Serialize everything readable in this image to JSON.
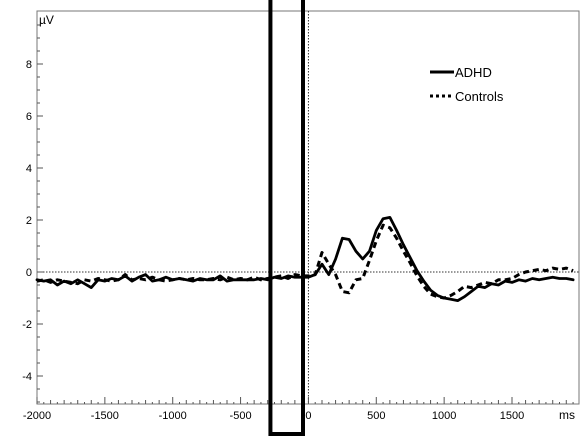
{
  "chart_data": {
    "type": "line",
    "title": "",
    "xlabel": "ms",
    "ylabel": "µV",
    "xlim": [
      -2000,
      1950
    ],
    "ylim": [
      -5,
      9.5
    ],
    "x_ticks": [
      -2000,
      -1500,
      -1000,
      -500,
      0,
      500,
      1000,
      1500
    ],
    "x_tick_labels": [
      "-2000",
      "-1500",
      "-1000",
      "-500",
      "0",
      "500",
      "1000",
      "1500"
    ],
    "y_ticks": [
      -4,
      -2,
      0,
      2,
      4,
      6,
      8
    ],
    "y_tick_labels": [
      "-4",
      "-2",
      "0",
      "2",
      "4",
      "6",
      "8"
    ],
    "grid": false,
    "legend_position": "top-right",
    "reference_lines": [
      {
        "axis": "y",
        "value": 0,
        "style": "dotted"
      },
      {
        "axis": "x",
        "value": 0,
        "style": "dotted"
      }
    ],
    "highlight_window": {
      "x_start": -280,
      "x_end": -40
    },
    "series": [
      {
        "name": "ADHD",
        "style": "solid",
        "color": "#000000",
        "x": [
          -2000,
          -1950,
          -1900,
          -1850,
          -1800,
          -1750,
          -1700,
          -1650,
          -1600,
          -1550,
          -1500,
          -1450,
          -1400,
          -1350,
          -1300,
          -1250,
          -1200,
          -1150,
          -1100,
          -1050,
          -1000,
          -950,
          -900,
          -850,
          -800,
          -750,
          -700,
          -650,
          -600,
          -550,
          -500,
          -450,
          -400,
          -350,
          -300,
          -250,
          -200,
          -150,
          -100,
          -50,
          0,
          50,
          100,
          150,
          200,
          250,
          300,
          350,
          400,
          450,
          500,
          550,
          600,
          650,
          700,
          750,
          800,
          850,
          900,
          950,
          1000,
          1050,
          1100,
          1150,
          1200,
          1250,
          1300,
          1350,
          1400,
          1450,
          1500,
          1550,
          1600,
          1650,
          1700,
          1750,
          1800,
          1850,
          1900,
          1950
        ],
        "values": [
          -0.3,
          -0.35,
          -0.3,
          -0.5,
          -0.35,
          -0.45,
          -0.3,
          -0.45,
          -0.6,
          -0.3,
          -0.35,
          -0.25,
          -0.3,
          -0.15,
          -0.35,
          -0.2,
          -0.1,
          -0.35,
          -0.3,
          -0.2,
          -0.3,
          -0.25,
          -0.3,
          -0.35,
          -0.25,
          -0.3,
          -0.3,
          -0.15,
          -0.35,
          -0.3,
          -0.3,
          -0.3,
          -0.3,
          -0.25,
          -0.3,
          -0.2,
          -0.25,
          -0.15,
          -0.2,
          -0.2,
          -0.2,
          -0.1,
          0.3,
          -0.1,
          0.5,
          1.3,
          1.25,
          0.8,
          0.5,
          0.8,
          1.6,
          2.05,
          2.1,
          1.6,
          1.05,
          0.55,
          0.05,
          -0.35,
          -0.7,
          -0.9,
          -1.0,
          -1.05,
          -1.1,
          -0.95,
          -0.75,
          -0.55,
          -0.6,
          -0.45,
          -0.5,
          -0.35,
          -0.4,
          -0.3,
          -0.35,
          -0.25,
          -0.3,
          -0.25,
          -0.2,
          -0.25,
          -0.25,
          -0.3
        ]
      },
      {
        "name": "Controls",
        "style": "dotted",
        "color": "#000000",
        "x": [
          -2000,
          -1950,
          -1900,
          -1850,
          -1800,
          -1750,
          -1700,
          -1650,
          -1600,
          -1550,
          -1500,
          -1450,
          -1400,
          -1350,
          -1300,
          -1250,
          -1200,
          -1150,
          -1100,
          -1050,
          -1000,
          -950,
          -900,
          -850,
          -800,
          -750,
          -700,
          -650,
          -600,
          -550,
          -500,
          -450,
          -400,
          -350,
          -300,
          -250,
          -200,
          -150,
          -100,
          -50,
          0,
          50,
          100,
          150,
          200,
          250,
          300,
          350,
          400,
          450,
          500,
          550,
          600,
          650,
          700,
          750,
          800,
          850,
          900,
          950,
          1000,
          1050,
          1100,
          1150,
          1200,
          1250,
          1300,
          1350,
          1400,
          1450,
          1500,
          1550,
          1600,
          1650,
          1700,
          1750,
          1800,
          1850,
          1900,
          1950
        ],
        "values": [
          -0.35,
          -0.3,
          -0.4,
          -0.3,
          -0.35,
          -0.4,
          -0.45,
          -0.3,
          -0.35,
          -0.25,
          -0.3,
          -0.35,
          -0.3,
          -0.1,
          -0.3,
          -0.25,
          -0.3,
          -0.2,
          -0.3,
          -0.35,
          -0.3,
          -0.25,
          -0.3,
          -0.25,
          -0.3,
          -0.3,
          -0.25,
          -0.3,
          -0.2,
          -0.3,
          -0.25,
          -0.3,
          -0.2,
          -0.3,
          -0.25,
          -0.2,
          -0.15,
          -0.25,
          -0.1,
          -0.15,
          -0.15,
          -0.1,
          0.75,
          0.3,
          -0.1,
          -0.75,
          -0.8,
          -0.3,
          -0.25,
          0.45,
          1.2,
          1.8,
          1.7,
          1.3,
          0.8,
          0.35,
          -0.15,
          -0.55,
          -0.85,
          -0.95,
          -1.0,
          -0.9,
          -0.75,
          -0.55,
          -0.6,
          -0.5,
          -0.4,
          -0.45,
          -0.3,
          -0.3,
          -0.25,
          -0.1,
          0.0,
          0.05,
          0.1,
          0.05,
          0.15,
          0.1,
          0.15,
          0.05
        ]
      }
    ]
  }
}
